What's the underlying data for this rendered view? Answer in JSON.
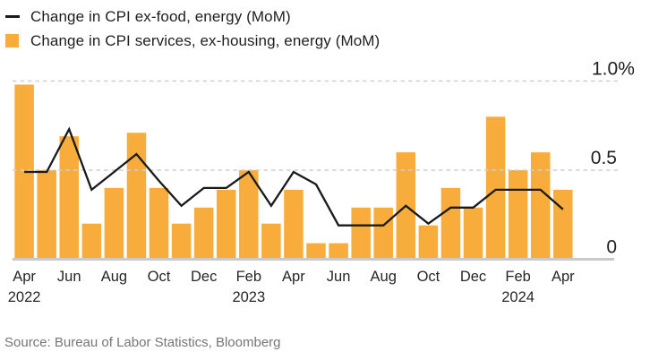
{
  "legend": {
    "items": [
      {
        "label": "Change in CPI ex-food, energy (MoM)",
        "type": "line",
        "color": "#1a1a1a"
      },
      {
        "label": "Change in CPI services, ex-housing, energy (MoM)",
        "type": "bar",
        "color": "#F8AC3B"
      }
    ]
  },
  "source": "Source: Bureau of Labor Statistics, Bloomberg",
  "chart_data": {
    "type": "bar",
    "subtype": "bar-with-line-overlay",
    "categories": [
      "Apr 2022",
      "May 2022",
      "Jun 2022",
      "Jul 2022",
      "Aug 2022",
      "Sep 2022",
      "Oct 2022",
      "Nov 2022",
      "Dec 2022",
      "Jan 2023",
      "Feb 2023",
      "Mar 2023",
      "Apr 2023",
      "May 2023",
      "Jun 2023",
      "Jul 2023",
      "Aug 2023",
      "Sep 2023",
      "Oct 2023",
      "Nov 2023",
      "Dec 2023",
      "Jan 2024",
      "Feb 2024",
      "Mar 2024",
      "Apr 2024"
    ],
    "series": [
      {
        "name": "Change in CPI ex-food, energy (MoM)",
        "type": "line",
        "color": "#1a1a1a",
        "values": [
          0.49,
          0.49,
          0.73,
          0.39,
          0.49,
          0.59,
          0.44,
          0.3,
          0.4,
          0.4,
          0.49,
          0.3,
          0.49,
          0.42,
          0.19,
          0.19,
          0.19,
          0.3,
          0.2,
          0.29,
          0.29,
          0.39,
          0.39,
          0.39,
          0.28
        ]
      },
      {
        "name": "Change in CPI services, ex-housing, energy (MoM)",
        "type": "bar",
        "color": "#F8AC3B",
        "values": [
          0.98,
          0.5,
          0.69,
          0.2,
          0.4,
          0.71,
          0.4,
          0.2,
          0.29,
          0.39,
          0.5,
          0.2,
          0.39,
          0.09,
          0.09,
          0.29,
          0.29,
          0.6,
          0.19,
          0.4,
          0.29,
          0.8,
          0.5,
          0.6,
          0.39
        ]
      }
    ],
    "x_ticks": [
      {
        "index": 0,
        "label": "Apr",
        "year": "2022"
      },
      {
        "index": 2,
        "label": "Jun"
      },
      {
        "index": 4,
        "label": "Aug"
      },
      {
        "index": 6,
        "label": "Oct"
      },
      {
        "index": 8,
        "label": "Dec"
      },
      {
        "index": 10,
        "label": "Feb",
        "year": "2023"
      },
      {
        "index": 12,
        "label": "Apr"
      },
      {
        "index": 14,
        "label": "Jun"
      },
      {
        "index": 16,
        "label": "Aug"
      },
      {
        "index": 18,
        "label": "Oct"
      },
      {
        "index": 20,
        "label": "Dec"
      },
      {
        "index": 22,
        "label": "Feb",
        "year": "2024"
      },
      {
        "index": 24,
        "label": "Apr"
      }
    ],
    "y_ticks": [
      {
        "value": 0,
        "label": "0"
      },
      {
        "value": 0.5,
        "label": "0.5"
      },
      {
        "value": 1.0,
        "label": "1.0%"
      }
    ],
    "ylim": [
      0,
      1.0
    ],
    "unit": "%",
    "grid": "horizontal-dashed",
    "grid_color": "#cfcfcf",
    "baseline_color": "#c9c9c9",
    "axis_text_color": "#262626",
    "legend_position": "top-left"
  }
}
